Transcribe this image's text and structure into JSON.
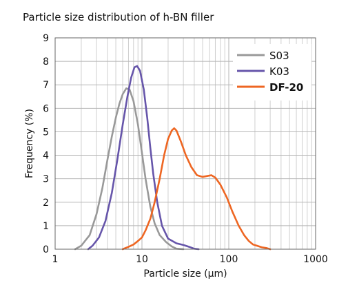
{
  "chart_data": {
    "type": "line",
    "title": "Particle size distribution of h-BN filler",
    "xlabel": "Particle size (μm)",
    "ylabel": "Frequency (%)",
    "xscale": "log",
    "xlim": [
      1,
      1000
    ],
    "ylim": [
      0,
      9
    ],
    "xticks": [
      {
        "value": 1,
        "label": "1"
      },
      {
        "value": 10,
        "label": "10"
      },
      {
        "value": 100,
        "label": "100"
      },
      {
        "value": 1000,
        "label": "1000"
      }
    ],
    "yticks": [
      {
        "value": 0,
        "label": "0"
      },
      {
        "value": 1,
        "label": "1"
      },
      {
        "value": 2,
        "label": "2"
      },
      {
        "value": 3,
        "label": "3"
      },
      {
        "value": 4,
        "label": "4"
      },
      {
        "value": 5,
        "label": "5"
      },
      {
        "value": 6,
        "label": "6"
      },
      {
        "value": 7,
        "label": "7"
      },
      {
        "value": 8,
        "label": "8"
      },
      {
        "value": 9,
        "label": "9"
      }
    ],
    "grid": true,
    "legend_position": "top-right",
    "series": [
      {
        "name": "S03",
        "color": "#999999",
        "points": [
          [
            1.7,
            0
          ],
          [
            2.0,
            0.15
          ],
          [
            2.5,
            0.6
          ],
          [
            3.0,
            1.5
          ],
          [
            3.5,
            2.6
          ],
          [
            4.0,
            3.8
          ],
          [
            4.5,
            4.8
          ],
          [
            5.0,
            5.6
          ],
          [
            5.5,
            6.2
          ],
          [
            6.0,
            6.6
          ],
          [
            6.6,
            6.85
          ],
          [
            7.2,
            6.8
          ],
          [
            8.0,
            6.3
          ],
          [
            9.0,
            5.3
          ],
          [
            10.0,
            4.1
          ],
          [
            11.0,
            3.0
          ],
          [
            12.5,
            1.8
          ],
          [
            14.0,
            1.1
          ],
          [
            16.0,
            0.6
          ],
          [
            19.0,
            0.3
          ],
          [
            22.0,
            0.12
          ],
          [
            25.0,
            0.02
          ],
          [
            30.0,
            0
          ]
        ]
      },
      {
        "name": "K03",
        "color": "#6655aa",
        "points": [
          [
            2.4,
            0
          ],
          [
            2.7,
            0.15
          ],
          [
            3.2,
            0.5
          ],
          [
            3.8,
            1.2
          ],
          [
            4.5,
            2.4
          ],
          [
            5.2,
            3.8
          ],
          [
            6.0,
            5.3
          ],
          [
            6.8,
            6.5
          ],
          [
            7.5,
            7.3
          ],
          [
            8.2,
            7.75
          ],
          [
            8.8,
            7.8
          ],
          [
            9.5,
            7.6
          ],
          [
            10.5,
            6.8
          ],
          [
            11.5,
            5.6
          ],
          [
            12.5,
            4.3
          ],
          [
            13.5,
            3.2
          ],
          [
            15.0,
            2.0
          ],
          [
            17.0,
            1.0
          ],
          [
            20.0,
            0.45
          ],
          [
            25.0,
            0.25
          ],
          [
            30.0,
            0.18
          ],
          [
            35.0,
            0.1
          ],
          [
            40.0,
            0.02
          ],
          [
            45.0,
            0
          ]
        ]
      },
      {
        "name": "DF-20",
        "color": "#ee6622",
        "points": [
          [
            6.0,
            0
          ],
          [
            7.0,
            0.1
          ],
          [
            8.0,
            0.2
          ],
          [
            9.0,
            0.35
          ],
          [
            10.0,
            0.5
          ],
          [
            11.0,
            0.8
          ],
          [
            12.5,
            1.3
          ],
          [
            14.0,
            2.0
          ],
          [
            16.0,
            3.0
          ],
          [
            18.0,
            4.0
          ],
          [
            20.0,
            4.7
          ],
          [
            22.0,
            5.05
          ],
          [
            23.5,
            5.15
          ],
          [
            25.0,
            5.05
          ],
          [
            28.0,
            4.6
          ],
          [
            32.0,
            4.0
          ],
          [
            37.0,
            3.5
          ],
          [
            43.0,
            3.15
          ],
          [
            50.0,
            3.08
          ],
          [
            57.0,
            3.12
          ],
          [
            63.0,
            3.15
          ],
          [
            70.0,
            3.05
          ],
          [
            80.0,
            2.75
          ],
          [
            95.0,
            2.2
          ],
          [
            110.0,
            1.6
          ],
          [
            130.0,
            1.0
          ],
          [
            150.0,
            0.6
          ],
          [
            170.0,
            0.35
          ],
          [
            190.0,
            0.2
          ],
          [
            210.0,
            0.15
          ],
          [
            240.0,
            0.08
          ],
          [
            270.0,
            0.05
          ],
          [
            300.0,
            0
          ]
        ]
      }
    ]
  }
}
